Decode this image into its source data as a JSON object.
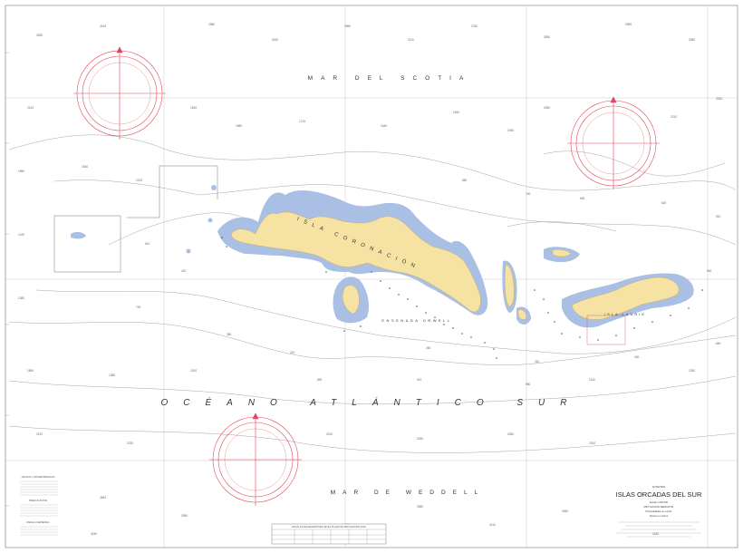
{
  "chart": {
    "title": "ISLAS ORCADAS DEL SUR",
    "subtitle_lines": [
      "ANTARTIDA",
      "Escala 1:100 000",
      "PROYECCION MERCATOR",
      "Profundidades en metros",
      "Alturas en metros"
    ]
  },
  "labels": {
    "mar_scotia": "MAR DEL SCOTIA",
    "oceano": "OCÉANO ATLÁNTICO SUR",
    "mar_weddell": "MAR DE WEDDELL",
    "isla_coronacion": "ISLA CORONACIÓN",
    "ensenada": "ENSENADA ORWELL",
    "isla_laurie": "ISLA LAURIE"
  },
  "notes": {
    "left_top_heading": "NOTAS Y ADVERTENCIAS",
    "left_mid_heading": "PRECAUCION",
    "left_bot_heading": "REGLA GENERAL"
  },
  "table": {
    "heading": "ESCALAS DE MAGNETISMO EN EL PLANO DE PROYECCION 2010"
  },
  "colors": {
    "land": "#f6e3a4",
    "shallow": "#a9bfe4",
    "compass": "#e2475d",
    "grid": "#bcbcbc",
    "contour": "#9a9a9a"
  }
}
